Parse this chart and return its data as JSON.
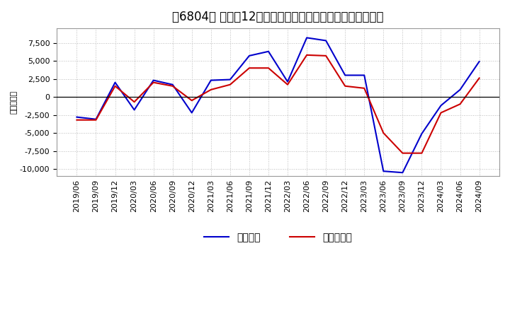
{
  "title": "［6804］ 利益だ12か月移動合計の対前年同期増減額の推移",
  "ylabel": "（百万円）",
  "x_labels": [
    "2019/06",
    "2019/09",
    "2019/12",
    "2020/03",
    "2020/06",
    "2020/09",
    "2020/12",
    "2021/03",
    "2021/06",
    "2021/09",
    "2021/12",
    "2022/03",
    "2022/06",
    "2022/09",
    "2022/12",
    "2023/03",
    "2023/06",
    "2023/09",
    "2023/12",
    "2024/03",
    "2024/06",
    "2024/09"
  ],
  "keijo_rieki": [
    -2800,
    -3100,
    2000,
    -1800,
    2300,
    1700,
    -2200,
    2300,
    2400,
    5700,
    6300,
    2100,
    8200,
    7800,
    3000,
    3000,
    -10300,
    -10500,
    -5100,
    -1200,
    1000,
    4900
  ],
  "touki_jun_rieki": [
    -3200,
    -3200,
    1500,
    -700,
    2000,
    1500,
    -500,
    1000,
    1700,
    4000,
    4000,
    1700,
    5800,
    5700,
    1500,
    1200,
    -5000,
    -7800,
    -7800,
    -2200,
    -1000,
    2600
  ],
  "line_color_keijo": "#0000cc",
  "line_color_touki": "#cc0000",
  "background_color": "#ffffff",
  "grid_color": "#bbbbbb",
  "ylim": [
    -11000,
    9500
  ],
  "yticks": [
    -10000,
    -7500,
    -5000,
    -2500,
    0,
    2500,
    5000,
    7500
  ],
  "legend_keijo": "経常利益",
  "legend_touki": "当期純利益",
  "title_fontsize": 12,
  "axis_fontsize": 8,
  "legend_fontsize": 10
}
